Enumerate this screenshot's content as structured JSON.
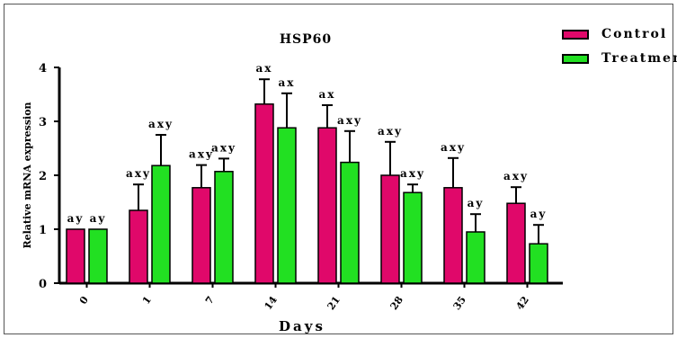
{
  "chart_data": {
    "type": "bar",
    "title": "HSP60",
    "xlabel": "Days",
    "ylabel": "Relative mRNA expression",
    "ylim": [
      0,
      4
    ],
    "yticks": [
      "0",
      "1",
      "2",
      "3",
      "4"
    ],
    "categories": [
      "0",
      "1",
      "7",
      "14",
      "21",
      "28",
      "35",
      "42"
    ],
    "series": [
      {
        "name": "Control",
        "color": "#e0086a",
        "values": [
          1.0,
          1.35,
          1.77,
          3.32,
          2.88,
          2.0,
          1.77,
          1.48
        ],
        "errors": [
          0.0,
          0.48,
          0.42,
          0.46,
          0.42,
          0.62,
          0.55,
          0.3
        ],
        "labels": [
          "ay",
          "axy",
          "axy",
          "ax",
          "ax",
          "axy",
          "axy",
          "axy"
        ]
      },
      {
        "name": "Treatment",
        "color": "#22e022",
        "values": [
          1.0,
          2.18,
          2.07,
          2.88,
          2.24,
          1.68,
          0.95,
          0.73
        ],
        "errors": [
          0.0,
          0.57,
          0.24,
          0.64,
          0.58,
          0.15,
          0.33,
          0.35
        ],
        "labels": [
          "ay",
          "axy",
          "axy",
          "ax",
          "axy",
          "axy",
          "ay",
          "ay"
        ]
      }
    ],
    "legend": "top-right",
    "grid": false
  }
}
